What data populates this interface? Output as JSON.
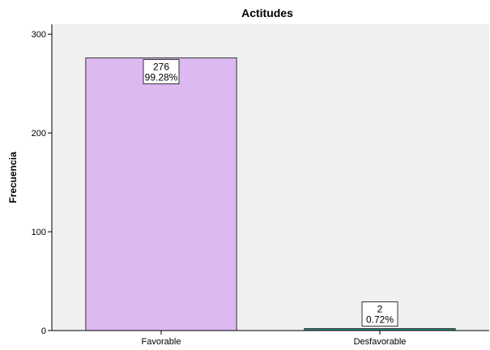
{
  "chart_data": {
    "type": "bar",
    "title": "Actitudes",
    "xlabel": "",
    "ylabel": "Frecuencia",
    "categories": [
      "Favorable",
      "Desfavorable"
    ],
    "values": [
      276,
      2
    ],
    "data_labels": [
      {
        "count": "276",
        "percent": "99.28%"
      },
      {
        "count": "2",
        "percent": "0.72%"
      }
    ],
    "ylim": [
      0,
      310
    ],
    "yticks": [
      "0",
      "100",
      "200",
      "300"
    ],
    "colors": [
      "#dcb9f0",
      "#2a8a80"
    ],
    "plot_background": "#f0f0f0",
    "grid": false
  }
}
